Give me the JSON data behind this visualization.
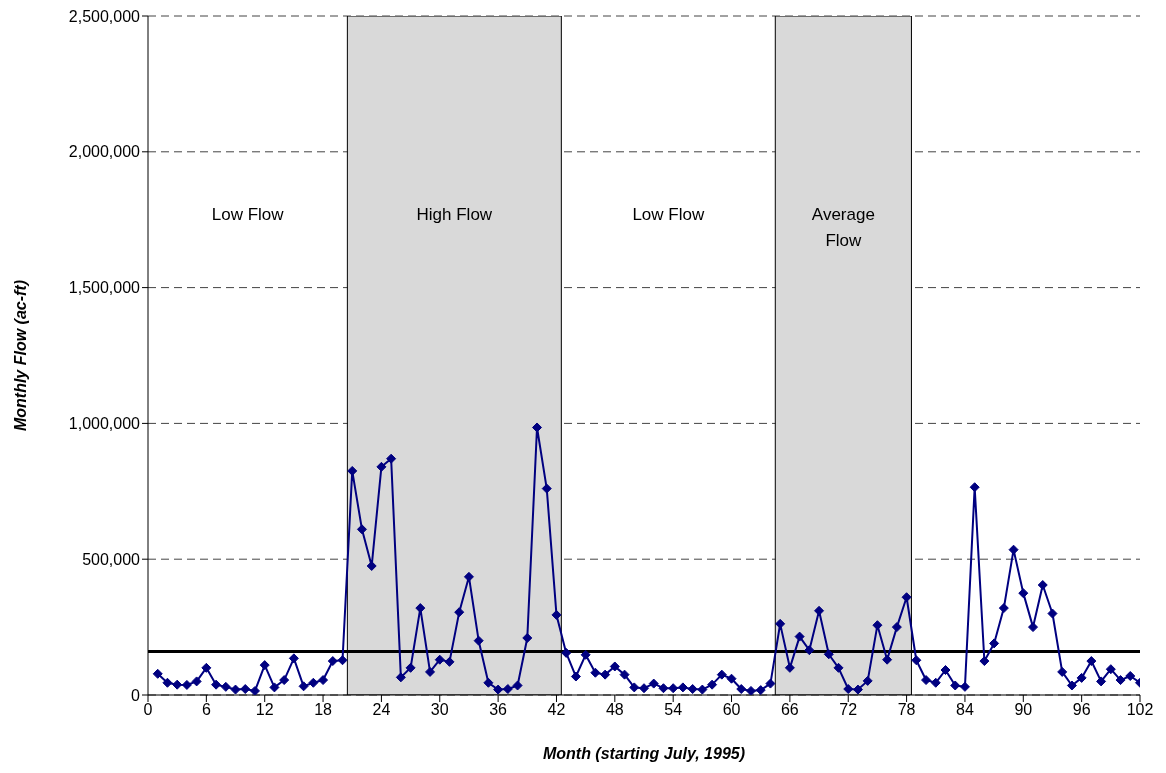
{
  "chart_data": {
    "type": "line",
    "xlabel": "Month (starting July, 1995)",
    "ylabel": "Monthly Flow (ac-ft)",
    "x": [
      1,
      2,
      3,
      4,
      5,
      6,
      7,
      8,
      9,
      10,
      11,
      12,
      13,
      14,
      15,
      16,
      17,
      18,
      19,
      20,
      21,
      22,
      23,
      24,
      25,
      26,
      27,
      28,
      29,
      30,
      31,
      32,
      33,
      34,
      35,
      36,
      37,
      38,
      39,
      40,
      41,
      42,
      43,
      44,
      45,
      46,
      47,
      48,
      49,
      50,
      51,
      52,
      53,
      54,
      55,
      56,
      57,
      58,
      59,
      60,
      61,
      62,
      63,
      64,
      65,
      66,
      67,
      68,
      69,
      70,
      71,
      72,
      73,
      74,
      75,
      76,
      77,
      78,
      79,
      80,
      81,
      82,
      83,
      84,
      85,
      86,
      87,
      88,
      89,
      90,
      91,
      92,
      93,
      94,
      95,
      96,
      97,
      98,
      99,
      100,
      101,
      102
    ],
    "series": [
      {
        "color": "#000080",
        "values": [
          78000,
          45000,
          38000,
          37000,
          50000,
          100000,
          38000,
          30000,
          20000,
          22000,
          15000,
          110000,
          28000,
          55000,
          135000,
          32000,
          45000,
          55000,
          125000,
          128000,
          825000,
          610000,
          475000,
          840000,
          870000,
          65000,
          100000,
          320000,
          85000,
          130000,
          122000,
          305000,
          435000,
          200000,
          45000,
          20000,
          22000,
          35000,
          210000,
          985000,
          760000,
          295000,
          155000,
          68000,
          148000,
          82000,
          75000,
          105000,
          75000,
          28000,
          25000,
          42000,
          25000,
          25000,
          28000,
          22000,
          20000,
          38000,
          75000,
          60000,
          22000,
          15000,
          18000,
          42000,
          262000,
          100000,
          215000,
          165000,
          310000,
          150000,
          100000,
          22000,
          20000,
          52000,
          257000,
          130000,
          250000,
          360000,
          128000,
          55000,
          45000,
          92000,
          35000,
          30000,
          765000,
          125000,
          190000,
          320000,
          535000,
          375000,
          250000,
          405000,
          300000,
          85000,
          35000,
          63000,
          125000,
          50000,
          95000,
          55000,
          70000,
          45000
        ]
      }
    ],
    "xlim": [
      0,
      102
    ],
    "xticks": [
      0,
      6,
      12,
      18,
      24,
      30,
      36,
      42,
      48,
      54,
      60,
      66,
      72,
      78,
      84,
      90,
      96,
      102
    ],
    "ylim": [
      0,
      2500000
    ],
    "yticks": [
      {
        "value": 0,
        "label": "0"
      },
      {
        "value": 500000,
        "label": "500,000"
      },
      {
        "value": 1000000,
        "label": "1,000,000"
      },
      {
        "value": 1500000,
        "label": "1,500,000"
      },
      {
        "value": 2000000,
        "label": "2,000,000"
      },
      {
        "value": 2500000,
        "label": "2,500,000"
      }
    ],
    "grid": "y",
    "marker": "diamond",
    "line_style": "solid",
    "ref_lines": [
      {
        "axis": "y",
        "value": 160000,
        "color": "#000000"
      }
    ],
    "bands": [
      {
        "axis": "x",
        "from": 20.5,
        "to": 42.5,
        "label": "High Flow",
        "color": "#d9d9d9"
      },
      {
        "axis": "x",
        "from": 64.5,
        "to": 78.5,
        "label": "Average Flow",
        "color": "#d9d9d9"
      }
    ],
    "annotations": [
      "Low Flow",
      "Low Flow"
    ]
  }
}
